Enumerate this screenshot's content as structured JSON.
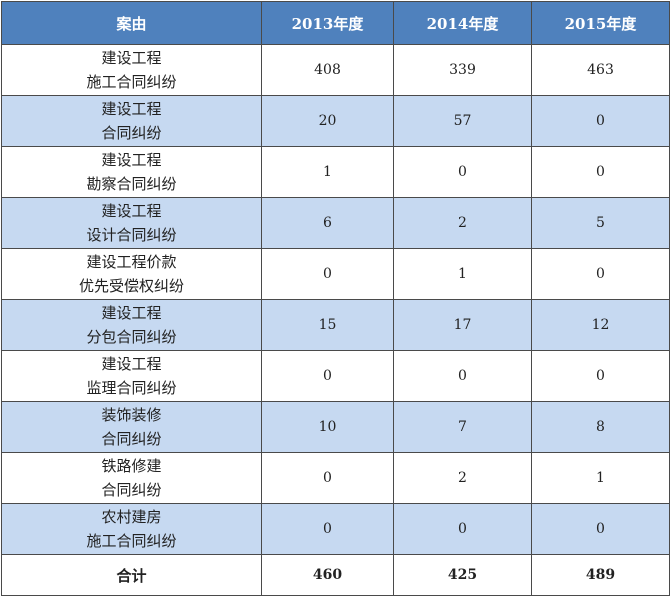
{
  "headers": {
    "cause": "案由",
    "y2013": "2013年度",
    "y2014": "2014年度",
    "y2015": "2015年度"
  },
  "rows": [
    {
      "line1": "建设工程",
      "line2": "施工合同纠纷",
      "y2013": "408",
      "y2014": "339",
      "y2015": "463"
    },
    {
      "line1": "建设工程",
      "line2": "合同纠纷",
      "y2013": "20",
      "y2014": "57",
      "y2015": "0"
    },
    {
      "line1": "建设工程",
      "line2": "勘察合同纠纷",
      "y2013": "1",
      "y2014": "0",
      "y2015": "0"
    },
    {
      "line1": "建设工程",
      "line2": "设计合同纠纷",
      "y2013": "6",
      "y2014": "2",
      "y2015": "5"
    },
    {
      "line1": "建设工程价款",
      "line2": "优先受偿权纠纷",
      "y2013": "0",
      "y2014": "1",
      "y2015": "0"
    },
    {
      "line1": "建设工程",
      "line2": "分包合同纠纷",
      "y2013": "15",
      "y2014": "17",
      "y2015": "12"
    },
    {
      "line1": "建设工程",
      "line2": "监理合同纠纷",
      "y2013": "0",
      "y2014": "0",
      "y2015": "0"
    },
    {
      "line1": "装饰装修",
      "line2": "合同纠纷",
      "y2013": "10",
      "y2014": "7",
      "y2015": "8"
    },
    {
      "line1": "铁路修建",
      "line2": "合同纠纷",
      "y2013": "0",
      "y2014": "2",
      "y2015": "1"
    },
    {
      "line1": "农村建房",
      "line2": "施工合同纠纷",
      "y2013": "0",
      "y2014": "0",
      "y2015": "0"
    }
  ],
  "total": {
    "label": "合计",
    "y2013": "460",
    "y2014": "425",
    "y2015": "489"
  },
  "colors": {
    "header_bg": "#4f81bd",
    "shaded_row_bg": "#c6d9f1",
    "border": "#4a4a4a"
  }
}
